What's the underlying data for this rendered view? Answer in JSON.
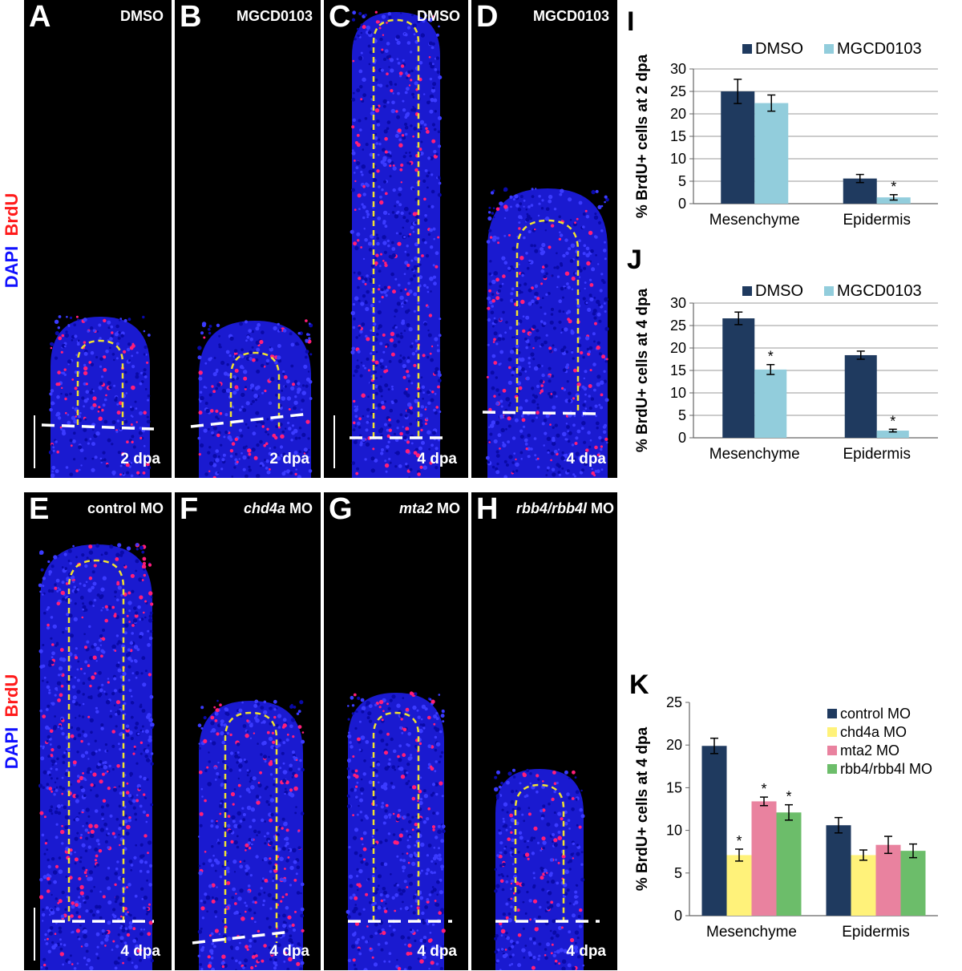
{
  "panels": [
    {
      "letter": "A",
      "condition": "DMSO",
      "dpa": "2 dpa"
    },
    {
      "letter": "B",
      "condition": "MGCD0103",
      "dpa": "2 dpa"
    },
    {
      "letter": "C",
      "condition": "DMSO",
      "dpa": "4 dpa"
    },
    {
      "letter": "D",
      "condition": "MGCD0103",
      "dpa": "4 dpa"
    },
    {
      "letter": "E",
      "condition": "control MO",
      "dpa": "4 dpa"
    },
    {
      "letter": "F",
      "condition_italic": "chd4a",
      "condition_rest": " MO",
      "dpa": "4 dpa"
    },
    {
      "letter": "G",
      "condition_italic": "mta2",
      "condition_rest": " MO",
      "dpa": "4 dpa"
    },
    {
      "letter": "H",
      "condition_italic": "rbb4/rbb4l",
      "condition_rest": " MO",
      "dpa": "4 dpa"
    }
  ],
  "stain_labels": {
    "brdu": "BrdU",
    "dapi": "DAPI"
  },
  "colors": {
    "dmso": "#1f3a5f",
    "mgcd": "#92cddc",
    "control": "#1f3a5f",
    "chd4a": "#fff27a",
    "mta2": "#e9829f",
    "rbb4": "#6cbd6a",
    "brdu": "#ff1a1a",
    "dapi": "#1010ff"
  },
  "chart_data": [
    {
      "letter": "I",
      "type": "bar",
      "categories": [
        "Mesenchyme",
        "Epidermis"
      ],
      "series": [
        {
          "name": "DMSO",
          "values": [
            25.0,
            5.6
          ],
          "errors": [
            2.7,
            0.9
          ]
        },
        {
          "name": "MGCD0103",
          "values": [
            22.4,
            1.4
          ],
          "errors": [
            1.8,
            0.6
          ]
        }
      ],
      "significant": [
        [
          false,
          false
        ],
        [
          false,
          true
        ]
      ],
      "ylabel": "% BrdU+ cells at 2 dpa",
      "ylim": [
        0,
        30
      ],
      "yticks": [
        "0",
        "5",
        "10",
        "15",
        "20",
        "25",
        "30"
      ],
      "legend": "top",
      "grid": true
    },
    {
      "letter": "J",
      "type": "bar",
      "categories": [
        "Mesenchyme",
        "Epidermis"
      ],
      "series": [
        {
          "name": "DMSO",
          "values": [
            26.6,
            18.4
          ],
          "errors": [
            1.4,
            0.9
          ]
        },
        {
          "name": "MGCD0103",
          "values": [
            15.2,
            1.6
          ],
          "errors": [
            1.1,
            0.3
          ]
        }
      ],
      "significant": [
        [
          false,
          false
        ],
        [
          true,
          true
        ]
      ],
      "ylabel": "% BrdU+ cells at 4 dpa",
      "ylim": [
        0,
        30
      ],
      "yticks": [
        "0",
        "5",
        "10",
        "15",
        "20",
        "25",
        "30"
      ],
      "legend": "top",
      "grid": true
    },
    {
      "letter": "K",
      "type": "bar",
      "categories": [
        "Mesenchyme",
        "Epidermis"
      ],
      "series": [
        {
          "name": "control MO",
          "values": [
            19.9,
            10.6
          ],
          "errors": [
            0.9,
            0.9
          ]
        },
        {
          "name": "chd4a MO",
          "values": [
            7.1,
            7.1
          ],
          "errors": [
            0.7,
            0.6
          ]
        },
        {
          "name": "mta2 MO",
          "values": [
            13.4,
            8.3
          ],
          "errors": [
            0.5,
            1.0
          ]
        },
        {
          "name": "rbb4/rbb4l MO",
          "values": [
            12.1,
            7.6
          ],
          "errors": [
            0.9,
            0.8
          ]
        }
      ],
      "significant": [
        [
          false,
          false
        ],
        [
          true,
          false
        ],
        [
          true,
          false
        ],
        [
          true,
          false
        ]
      ],
      "ylabel": "% BrdU+ cells at 4 dpa",
      "ylim": [
        0,
        25
      ],
      "yticks": [
        "0",
        "5",
        "10",
        "15",
        "20",
        "25"
      ],
      "legend": "top-right",
      "grid": false
    }
  ]
}
